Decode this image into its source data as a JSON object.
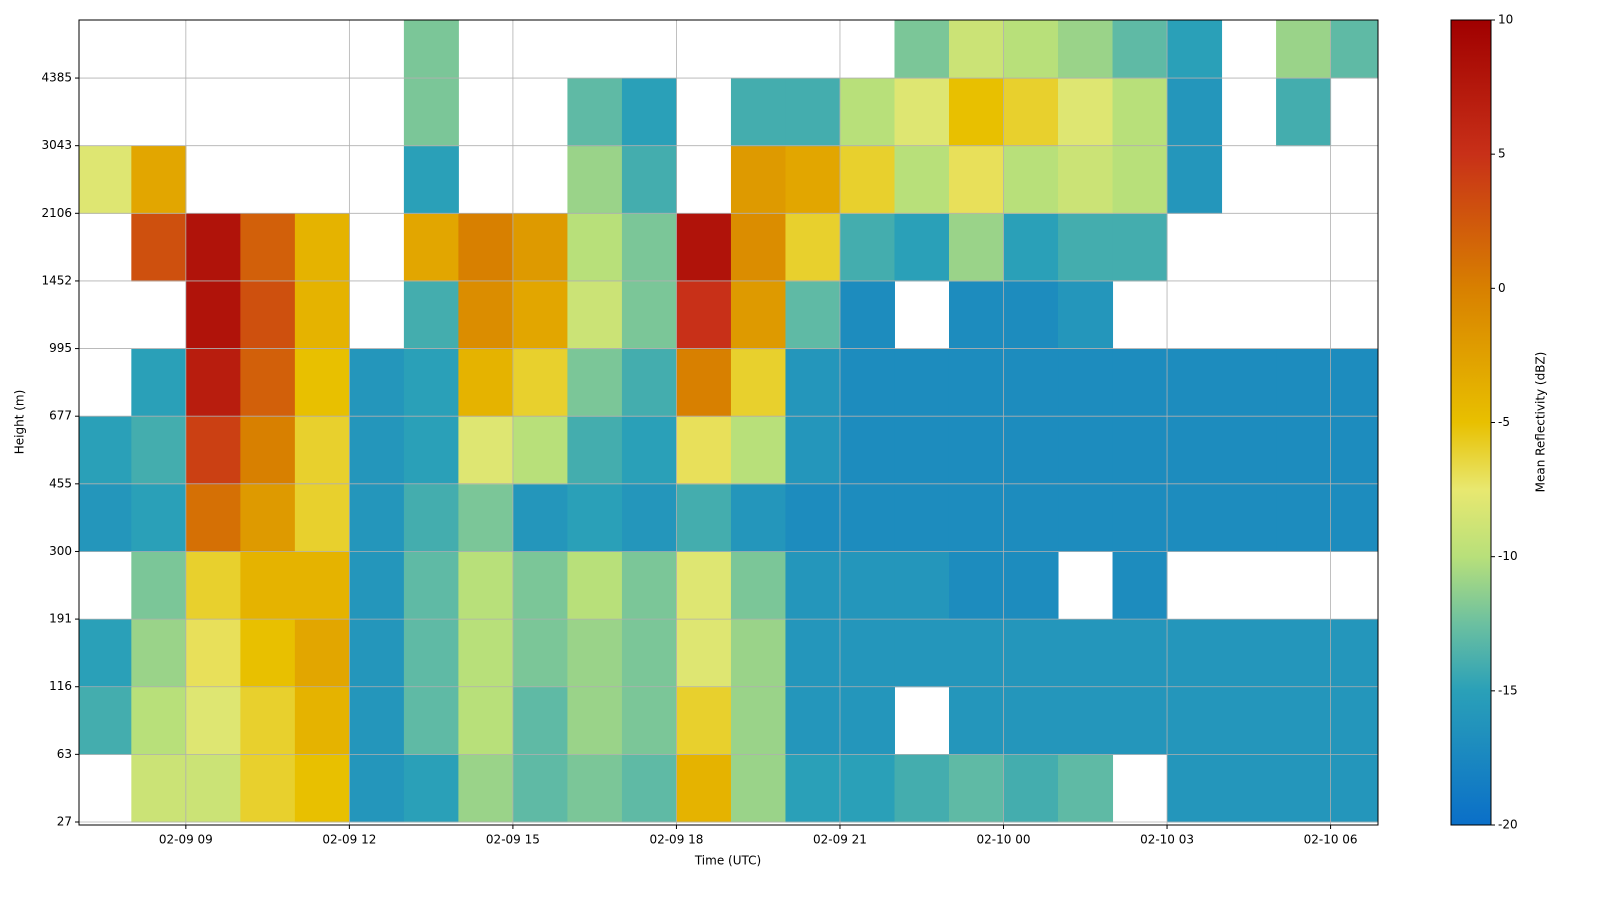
{
  "chart_data": {
    "type": "heatmap",
    "xlabel": "Time (UTC)",
    "ylabel": "Height (m)",
    "colorbar_label": "Mean Reflectivity (dBZ)",
    "xlim": [
      7.04,
      30.87
    ],
    "xticks": [
      {
        "value": 9,
        "label": "02-09 09"
      },
      {
        "value": 12,
        "label": "02-09 12"
      },
      {
        "value": 15,
        "label": "02-09 15"
      },
      {
        "value": 18,
        "label": "02-09 18"
      },
      {
        "value": 21,
        "label": "02-09 21"
      },
      {
        "value": 24,
        "label": "02-10 00"
      },
      {
        "value": 27,
        "label": "02-10 03"
      },
      {
        "value": 30,
        "label": "02-10 06"
      }
    ],
    "ylim": [
      26,
      6000
    ],
    "yticks": [
      27,
      63,
      116,
      191,
      300,
      455,
      677,
      995,
      1452,
      2106,
      3043,
      4385
    ],
    "grid": true,
    "clim": [
      -20,
      10
    ],
    "cticks": [
      -20,
      -15,
      -10,
      -5,
      0,
      5,
      10
    ],
    "colormap": [
      [
        -20,
        "#0a6fc8"
      ],
      [
        -15,
        "#2aa0b8"
      ],
      [
        -12.5,
        "#6cc0a0"
      ],
      [
        -10,
        "#b8e07a"
      ],
      [
        -7.5,
        "#e8e870"
      ],
      [
        -5,
        "#e8c000"
      ],
      [
        0,
        "#d88000"
      ],
      [
        5,
        "#c83018"
      ],
      [
        10,
        "#a00000"
      ]
    ],
    "x_edges": [
      7.04,
      8,
      9,
      10,
      11,
      12,
      13,
      14,
      15,
      16,
      17,
      18,
      19,
      20,
      21,
      22,
      23,
      24,
      25,
      26,
      27,
      28,
      29,
      30,
      30.87
    ],
    "y_edges": [
      27,
      63,
      116,
      191,
      300,
      455,
      677,
      995,
      1452,
      2106,
      3043,
      4385,
      6000
    ],
    "values": [
      [
        null,
        -9,
        -9,
        -6,
        -5,
        -16,
        -15,
        -11,
        -13,
        -12,
        -13,
        -4,
        -11,
        -15,
        -15,
        -14,
        -13,
        -14,
        -13,
        null,
        -16,
        -16,
        -16,
        -16
      ],
      [
        -14,
        -10,
        -8,
        -6,
        -4,
        -16,
        -13,
        -10,
        -13,
        -11,
        -12,
        -6,
        -11,
        -16,
        -16,
        null,
        -16,
        -16,
        -16,
        -16,
        -16,
        -16,
        -16,
        -16
      ],
      [
        -15,
        -11,
        -7,
        -5,
        -3,
        -16,
        -13,
        -10,
        -12,
        -11,
        -12,
        -8,
        -11,
        -16,
        -16,
        -16,
        -16,
        -16,
        -16,
        -16,
        -16,
        -16,
        -16,
        -16
      ],
      [
        null,
        -12,
        -6,
        -4,
        -4,
        -16,
        -13,
        -10,
        -12,
        -10,
        -12,
        -8,
        -12,
        -16,
        -16,
        -16,
        -17,
        -17,
        null,
        -17,
        null,
        null,
        null,
        null
      ],
      [
        -16,
        -15,
        1,
        -2,
        -6,
        -16,
        -14,
        -12,
        -16,
        -15,
        -16,
        -14,
        -16,
        -17,
        -17,
        -17,
        -17,
        -17,
        -17,
        -17,
        -17,
        -17,
        -17,
        -17
      ],
      [
        -15,
        -14,
        4,
        0,
        -6,
        -16,
        -15,
        -8,
        -10,
        -14,
        -15,
        -7,
        -10,
        -16,
        -17,
        -17,
        -17,
        -17,
        -17,
        -17,
        -17,
        -17,
        -17,
        -17
      ],
      [
        null,
        -15,
        7,
        2,
        -5,
        -16,
        -15,
        -4,
        -6,
        -12,
        -14,
        0,
        -6,
        -16,
        -17,
        -17,
        -17,
        -17,
        -17,
        -17,
        -17,
        -17,
        -17,
        -17
      ],
      [
        null,
        null,
        8,
        3,
        -4,
        null,
        -14,
        -1,
        -3,
        -9,
        -12,
        5,
        -2,
        -13,
        -17,
        null,
        -17,
        -17,
        -16,
        null,
        null,
        null,
        null,
        null
      ],
      [
        null,
        3,
        8,
        2,
        -4,
        null,
        -3,
        0,
        -2,
        -10,
        -12,
        8,
        -1,
        -6,
        -14,
        -15,
        -11,
        -15,
        -14,
        -14,
        null,
        null,
        null,
        null
      ],
      [
        -8,
        -3,
        null,
        null,
        null,
        null,
        -15,
        null,
        null,
        -11,
        -14,
        null,
        -2,
        -3,
        -6,
        -10,
        -7,
        -10,
        -9,
        -10,
        -16,
        null,
        null,
        null
      ],
      [
        null,
        null,
        null,
        null,
        null,
        null,
        -12,
        null,
        null,
        -13,
        -15,
        null,
        -14,
        -14,
        -10,
        -8,
        -5,
        -6,
        -8,
        -10,
        -16,
        null,
        -14,
        null
      ],
      [
        null,
        null,
        null,
        null,
        null,
        null,
        -12,
        null,
        null,
        null,
        null,
        null,
        null,
        null,
        null,
        -12,
        -9,
        -10,
        -11,
        -13,
        -15,
        null,
        -11,
        -13
      ]
    ]
  }
}
